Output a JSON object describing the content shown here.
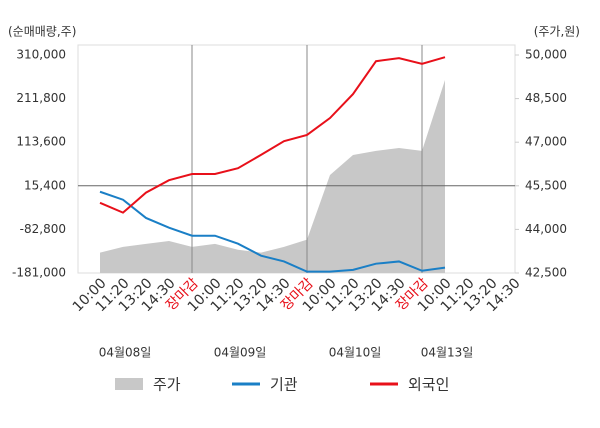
{
  "chart_data": {
    "type": "line",
    "y_axis_title": "(순매매량,주)",
    "y2_axis_title": "(주가,원)",
    "categories": [
      "10:00",
      "11:20",
      "13:20",
      "14:30",
      "장마감",
      "10:00",
      "11:20",
      "13:20",
      "14:30",
      "장마감",
      "10:00",
      "11:20",
      "13:20",
      "14:30",
      "장마감",
      "10:00",
      "11:20",
      "13:20",
      "14:30"
    ],
    "date_labels": [
      "04월08일",
      "04월09일",
      "04월10일",
      "04월13일"
    ],
    "series": [
      {
        "name": "주가",
        "type": "area",
        "axis": "y2",
        "color": "#c8c8c8",
        "values": [
          43200,
          43400,
          43500,
          43600,
          43400,
          43500,
          43300,
          43200,
          43400,
          43650,
          45870,
          46560,
          46700,
          46800,
          46700,
          49140,
          null,
          null,
          null
        ]
      },
      {
        "name": "기관",
        "type": "line",
        "color": "#1a7fc6",
        "values": [
          2000,
          -16000,
          -57000,
          -79000,
          -97000,
          -97000,
          -115000,
          -142000,
          -155000,
          -178000,
          -178000,
          -174000,
          -160000,
          -155000,
          -176000,
          -169000,
          null,
          null,
          null
        ]
      },
      {
        "name": "외국인",
        "type": "line",
        "color": "#e8101a",
        "values": [
          -23000,
          -45000,
          0,
          28000,
          42000,
          42000,
          55000,
          85000,
          116000,
          130000,
          168000,
          222000,
          296000,
          303000,
          290000,
          305000,
          null,
          null,
          null
        ]
      }
    ],
    "ylim": [
      -181000,
      310000
    ],
    "yticks": [
      {
        "value": -181000,
        "label": "-181,000"
      },
      {
        "value": -82800,
        "label": "-82,800"
      },
      {
        "value": 15400,
        "label": "15,400"
      },
      {
        "value": 113600,
        "label": "113,600"
      },
      {
        "value": 211800,
        "label": "211,800"
      },
      {
        "value": 310000,
        "label": "310,000"
      }
    ],
    "y2lim": [
      42500,
      50000
    ],
    "y2ticks": [
      {
        "value": 42500,
        "label": "42,500"
      },
      {
        "value": 44000,
        "label": "44,000"
      },
      {
        "value": 45500,
        "label": "45,500"
      },
      {
        "value": 47000,
        "label": "47,000"
      },
      {
        "value": 48500,
        "label": "48,500"
      },
      {
        "value": 50000,
        "label": "50,000"
      }
    ]
  }
}
